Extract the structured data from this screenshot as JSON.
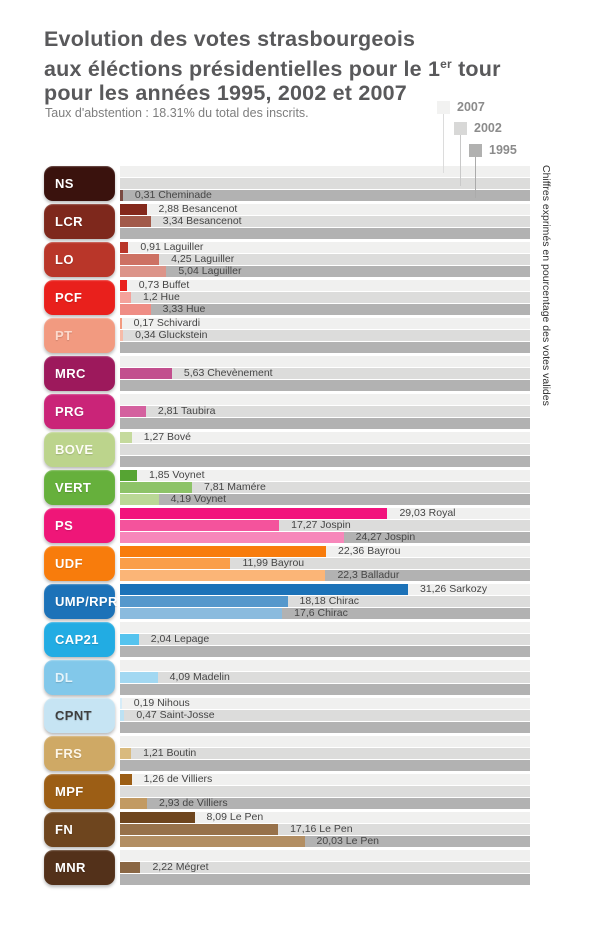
{
  "title": {
    "line1": "Evolution des votes strasbourgeois",
    "line2_pre": "aux éléctions présidentielles pour le 1",
    "line2_sup": "er",
    "line2_post": " tour",
    "line3": "pour  les années 1995, 2002 et 2007"
  },
  "subtitle": "Taux d'abstention : 18.31% du total des  inscrits.",
  "side_note": "Chiffres exprimés en pourcentage des votes valides",
  "legend": {
    "items": [
      {
        "year": "2007",
        "swatch": "#f2f2f1"
      },
      {
        "year": "2002",
        "swatch": "#d8d8d7"
      },
      {
        "year": "1995",
        "swatch": "#b1b1b0"
      }
    ]
  },
  "chart_data": {
    "type": "bar",
    "orientation": "horizontal",
    "title": "Evolution des votes strasbourgeois aux éléctions présidentielles pour le 1er tour pour les années 1995, 2002 et 2007",
    "unit": "% des votes valides (pourcentage des votes valides)",
    "years": [
      "2007",
      "2002",
      "1995"
    ],
    "axis_max": 44.5,
    "grid": false,
    "track_colors": [
      "#f0f0ef",
      "#dcdcdb",
      "#b2b2b2"
    ],
    "parties": [
      {
        "code": "NS",
        "badge_color": "#3a120d",
        "text_color": "#ffffff",
        "bars": [
          {
            "year": "1995",
            "value": 0.31,
            "label": "0,31 Cheminade",
            "color": "#7a4a42"
          }
        ]
      },
      {
        "code": "LCR",
        "badge_color": "#7e281c",
        "text_color": "#ffffff",
        "bars": [
          {
            "year": "2007",
            "value": 2.88,
            "label": "2,88 Besancenot",
            "color": "#84291c"
          },
          {
            "year": "2002",
            "value": 3.34,
            "label": "3,34 Besancenot",
            "color": "#a25a4a"
          }
        ]
      },
      {
        "code": "LO",
        "badge_color": "#b93629",
        "text_color": "#ffffff",
        "bars": [
          {
            "year": "2007",
            "value": 0.91,
            "label": "0,91 Laguiller",
            "color": "#b93629"
          },
          {
            "year": "2002",
            "value": 4.25,
            "label": "4,25 Laguiller",
            "color": "#cd7163"
          },
          {
            "year": "1995",
            "value": 5.04,
            "label": "5,04 Laguiller",
            "color": "#dc9489"
          }
        ]
      },
      {
        "code": "PCF",
        "badge_color": "#e9201c",
        "text_color": "#ffffff",
        "bars": [
          {
            "year": "2007",
            "value": 0.73,
            "label": "0,73 Buffet",
            "color": "#e9201c"
          },
          {
            "year": "2002",
            "value": 1.2,
            "label": "1,2 Hue",
            "color": "#f4a29b"
          },
          {
            "year": "1995",
            "value": 3.33,
            "label": "3,33 Hue",
            "color": "#ef8d85"
          }
        ]
      },
      {
        "code": "PT",
        "badge_color": "#f29a80",
        "text_color": "#fcd9cc",
        "bars": [
          {
            "year": "2007",
            "value": 0.17,
            "label": "0,17 Schivardi",
            "color": "#f29a80"
          },
          {
            "year": "2002",
            "value": 0.34,
            "label": "0,34 Gluckstein",
            "color": "#f6bba8"
          }
        ]
      },
      {
        "code": "MRC",
        "badge_color": "#9d195c",
        "text_color": "#ffffff",
        "bars": [
          {
            "year": "2002",
            "value": 5.63,
            "label": "5,63 Chevènement",
            "color": "#c24f8e"
          }
        ]
      },
      {
        "code": "PRG",
        "badge_color": "#ca2478",
        "text_color": "#ffffff",
        "bars": [
          {
            "year": "2002",
            "value": 2.81,
            "label": "2,81 Taubira",
            "color": "#d4619f"
          }
        ]
      },
      {
        "code": "BOVE",
        "badge_color": "#bcd48c",
        "text_color": "#fdfdf5",
        "bars": [
          {
            "year": "2007",
            "value": 1.27,
            "label": "1,27 Bové",
            "color": "#c5da9d"
          }
        ]
      },
      {
        "code": "VERT",
        "badge_color": "#66b03c",
        "text_color": "#ffffff",
        "bars": [
          {
            "year": "2007",
            "value": 1.85,
            "label": "1,85 Voynet",
            "color": "#56a433"
          },
          {
            "year": "2002",
            "value": 7.81,
            "label": "7,81 Mamére",
            "color": "#8dc368"
          },
          {
            "year": "1995",
            "value": 4.19,
            "label": "4,19 Voynet",
            "color": "#bad896"
          }
        ]
      },
      {
        "code": "PS",
        "badge_color": "#ef1678",
        "text_color": "#ffffff",
        "bars": [
          {
            "year": "2007",
            "value": 29.03,
            "label": "29,03 Royal",
            "color": "#f2137d"
          },
          {
            "year": "2002",
            "value": 17.27,
            "label": "17,27 Jospin",
            "color": "#f4539c"
          },
          {
            "year": "1995",
            "value": 24.27,
            "label": "24,27 Jospin",
            "color": "#f787ba"
          }
        ]
      },
      {
        "code": "UDF",
        "badge_color": "#f87c0c",
        "text_color": "#ffffff",
        "bars": [
          {
            "year": "2007",
            "value": 22.36,
            "label": "22,36 Bayrou",
            "color": "#f87c0c"
          },
          {
            "year": "2002",
            "value": 11.99,
            "label": "11,99 Bayrou",
            "color": "#fa9e49"
          },
          {
            "year": "1995",
            "value": 22.3,
            "label": "22,3 Balladur",
            "color": "#fbb577"
          }
        ]
      },
      {
        "code": "UMP/RPR",
        "badge_color": "#1c72b8",
        "text_color": "#ffffff",
        "bars": [
          {
            "year": "2007",
            "value": 31.26,
            "label": "31,26 Sarkozy",
            "color": "#1c72b8"
          },
          {
            "year": "2002",
            "value": 18.18,
            "label": "18,18 Chirac",
            "color": "#5598cc"
          },
          {
            "year": "1995",
            "value": 17.6,
            "label": "17,6 Chirac",
            "color": "#8abbde"
          }
        ]
      },
      {
        "code": "CAP21",
        "badge_color": "#22ace3",
        "text_color": "#ffffff",
        "bars": [
          {
            "year": "2002",
            "value": 2.04,
            "label": "2,04 Lepage",
            "color": "#55c3ee"
          }
        ]
      },
      {
        "code": "DL",
        "badge_color": "#82c8ea",
        "text_color": "#e4f4fb",
        "bars": [
          {
            "year": "2002",
            "value": 4.09,
            "label": "4,09 Madelin",
            "color": "#a2d8f2"
          }
        ]
      },
      {
        "code": "CPNT",
        "badge_color": "#c6e4f3",
        "text_color": "#3f3f3f",
        "bars": [
          {
            "year": "2007",
            "value": 0.19,
            "label": "0,19 Nihous",
            "color": "#d6ecf8"
          },
          {
            "year": "2002",
            "value": 0.47,
            "label": "0,47 Saint-Josse",
            "color": "#bce1f3"
          }
        ]
      },
      {
        "code": "FRS",
        "badge_color": "#cfa965",
        "text_color": "#fdf6e8",
        "bars": [
          {
            "year": "2002",
            "value": 1.21,
            "label": "1,21 Boutin",
            "color": "#d9ba7e"
          }
        ]
      },
      {
        "code": "MPF",
        "badge_color": "#9c5e15",
        "text_color": "#ffffff",
        "bars": [
          {
            "year": "2007",
            "value": 1.26,
            "label": "1,26 de Villiers",
            "color": "#9c5e15"
          },
          {
            "year": "1995",
            "value": 2.93,
            "label": "2,93 de Villiers",
            "color": "#c29a63"
          }
        ]
      },
      {
        "code": "FN",
        "badge_color": "#6e451e",
        "text_color": "#ffffff",
        "bars": [
          {
            "year": "2007",
            "value": 8.09,
            "label": "8,09 Le Pen",
            "color": "#6e451e"
          },
          {
            "year": "2002",
            "value": 17.16,
            "label": "17,16 Le Pen",
            "color": "#97714a"
          },
          {
            "year": "1995",
            "value": 20.03,
            "label": "20,03 Le Pen",
            "color": "#b28e63"
          }
        ]
      },
      {
        "code": "MNR",
        "badge_color": "#53311a",
        "text_color": "#ffffff",
        "bars": [
          {
            "year": "2002",
            "value": 2.22,
            "label": "2,22 Mégret",
            "color": "#8a6744"
          }
        ]
      }
    ]
  }
}
